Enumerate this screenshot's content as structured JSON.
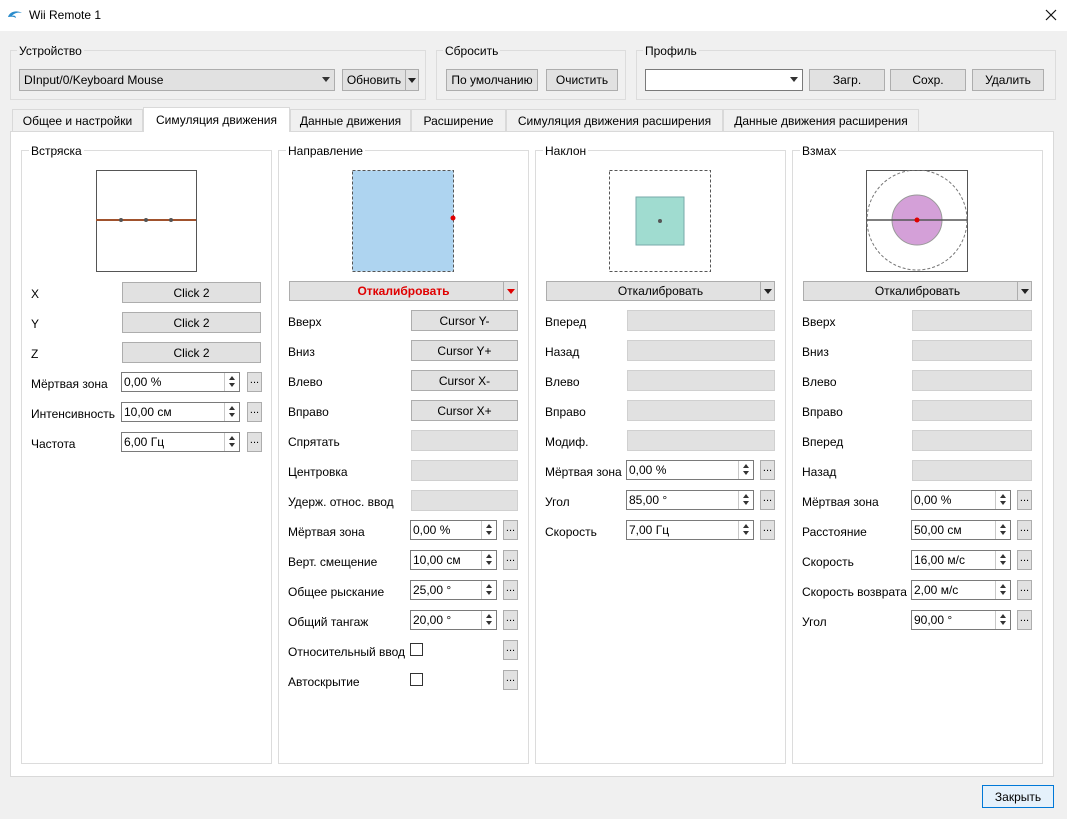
{
  "window": {
    "title": "Wii Remote 1",
    "accent_color": "#0078d7"
  },
  "device": {
    "label": "Устройство",
    "value": "DInput/0/Keyboard Mouse",
    "refresh": "Обновить"
  },
  "reset": {
    "label": "Сбросить",
    "default": "По умолчанию",
    "clear": "Очистить"
  },
  "profile": {
    "label": "Профиль",
    "value": "",
    "load": "Загр.",
    "save": "Сохр.",
    "delete": "Удалить"
  },
  "tabs": [
    {
      "label": "Общее и настройки"
    },
    {
      "label": "Симуляция движения",
      "active": true
    },
    {
      "label": "Данные движения"
    },
    {
      "label": "Расширение"
    },
    {
      "label": "Симуляция движения расширения"
    },
    {
      "label": "Данные движения расширения"
    }
  ],
  "shake": {
    "title": "Встряска",
    "rows": [
      {
        "label": "X",
        "value": "Click 2"
      },
      {
        "label": "Y",
        "value": "Click 2"
      },
      {
        "label": "Z",
        "value": "Click 2"
      }
    ],
    "settings": [
      {
        "label": "Мёртвая зона",
        "value": "0,00 %"
      },
      {
        "label": "Интенсивность",
        "value": "10,00 см"
      },
      {
        "label": "Частота",
        "value": "6,00 Гц"
      }
    ]
  },
  "direction": {
    "title": "Направление",
    "calibrate": "Откалибровать",
    "rows": [
      {
        "label": "Вверх",
        "value": "Cursor Y-"
      },
      {
        "label": "Вниз",
        "value": "Cursor Y+"
      },
      {
        "label": "Влево",
        "value": "Cursor X-"
      },
      {
        "label": "Вправо",
        "value": "Cursor X+"
      },
      {
        "label": "Спрятать",
        "value": ""
      },
      {
        "label": "Центровка",
        "value": ""
      },
      {
        "label": "Удерж. относ. ввод",
        "value": ""
      }
    ],
    "settings": [
      {
        "label": "Мёртвая зона",
        "value": "0,00 %"
      },
      {
        "label": "Верт. смещение",
        "value": "10,00 см"
      },
      {
        "label": "Общее рыскание",
        "value": "25,00 °"
      },
      {
        "label": "Общий тангаж",
        "value": "20,00 °"
      }
    ],
    "checks": [
      {
        "label": "Относительный ввод",
        "checked": false
      },
      {
        "label": "Автоскрытие",
        "checked": false
      }
    ]
  },
  "tilt": {
    "title": "Наклон",
    "calibrate": "Откалибровать",
    "rows": [
      {
        "label": "Вперед",
        "value": ""
      },
      {
        "label": "Назад",
        "value": ""
      },
      {
        "label": "Влево",
        "value": ""
      },
      {
        "label": "Вправо",
        "value": ""
      },
      {
        "label": "Модиф.",
        "value": ""
      }
    ],
    "settings": [
      {
        "label": "Мёртвая зона",
        "value": "0,00 %"
      },
      {
        "label": "Угол",
        "value": "85,00 °"
      },
      {
        "label": "Скорость",
        "value": "7,00 Гц"
      }
    ]
  },
  "swing": {
    "title": "Взмах",
    "calibrate": "Откалибровать",
    "rows": [
      {
        "label": "Вверх",
        "value": ""
      },
      {
        "label": "Вниз",
        "value": ""
      },
      {
        "label": "Влево",
        "value": ""
      },
      {
        "label": "Вправо",
        "value": ""
      },
      {
        "label": "Вперед",
        "value": ""
      },
      {
        "label": "Назад",
        "value": ""
      }
    ],
    "settings": [
      {
        "label": "Мёртвая зона",
        "value": "0,00 %"
      },
      {
        "label": "Расстояние",
        "value": "50,00 см"
      },
      {
        "label": "Скорость",
        "value": "16,00 м/с"
      },
      {
        "label": "Скорость возврата",
        "value": "2,00 м/с"
      },
      {
        "label": "Угол",
        "value": "90,00 °"
      }
    ]
  },
  "footer": {
    "close": "Закрыть"
  }
}
